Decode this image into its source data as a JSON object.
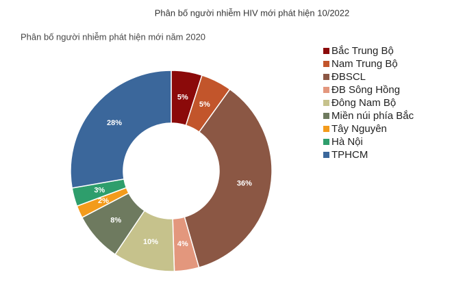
{
  "chart_data": {
    "type": "donut",
    "title": "Phân bố người nhiễm HIV mới phát hiện 10/2022",
    "subtitle": "Phân bố người nhiễm phát hiện mới năm 2020",
    "categories": [
      "Bắc Trung Bộ",
      "Nam Trung Bộ",
      "ĐBSCL",
      "ĐB Sông Hồng",
      "Đông Nam Bộ",
      "Miền núi phía Bắc",
      "Tây Nguyên",
      "Hà Nội",
      "TPHCM"
    ],
    "values": [
      5,
      5,
      36,
      4,
      10,
      8,
      2,
      3,
      28
    ],
    "value_labels": [
      "5%",
      "5%",
      "36%",
      "4%",
      "10%",
      "8%",
      "2%",
      "3%",
      "28%"
    ],
    "colors": [
      "#8b0a0a",
      "#c2552b",
      "#8b5744",
      "#e3977d",
      "#c6c28c",
      "#6e7a5f",
      "#f39b1c",
      "#2e9e6c",
      "#3b679b"
    ],
    "legend": "right"
  }
}
